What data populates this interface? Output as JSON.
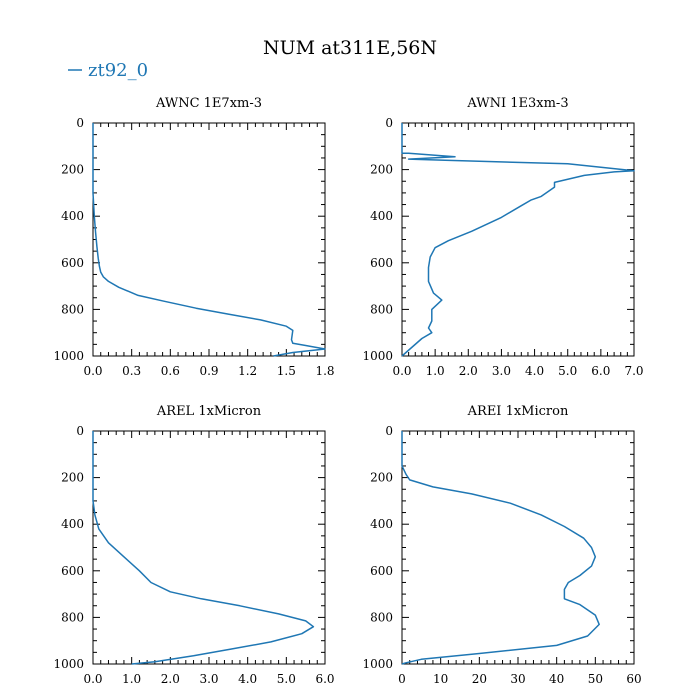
{
  "figure": {
    "title": "NUM at311E,56N",
    "legend_label": "zt92_0",
    "series_color": "#1f77b4"
  },
  "chart_data": [
    {
      "type": "line",
      "title": "AWNC  1E7xm-3",
      "xlabel": "",
      "ylabel": "",
      "xlim": [
        0,
        1.8
      ],
      "ylim": [
        1000,
        0
      ],
      "xticks": [
        "0.0",
        "0.3",
        "0.6",
        "0.9",
        "1.2",
        "1.5",
        "1.8"
      ],
      "yticks": [
        "0",
        "200",
        "400",
        "600",
        "800",
        "1000"
      ],
      "series": [
        {
          "name": "zt92_0",
          "x": [
            0.0,
            0.0,
            0.01,
            0.02,
            0.03,
            0.04,
            0.05,
            0.06,
            0.08,
            0.12,
            0.2,
            0.35,
            0.55,
            0.8,
            1.05,
            1.3,
            1.5,
            1.55,
            1.54,
            1.55,
            1.65,
            1.8,
            1.55,
            1.4
          ],
          "y": [
            0,
            300,
            400,
            470,
            530,
            580,
            615,
            640,
            660,
            680,
            705,
            740,
            765,
            795,
            820,
            845,
            872,
            890,
            930,
            945,
            955,
            970,
            985,
            1000
          ]
        }
      ]
    },
    {
      "type": "line",
      "title": "AWNI  1E3xm-3",
      "xlabel": "",
      "ylabel": "",
      "xlim": [
        0,
        7
      ],
      "ylim": [
        1000,
        0
      ],
      "xticks": [
        "0.0",
        "1.0",
        "2.0",
        "3.0",
        "4.0",
        "5.0",
        "6.0",
        "7.0"
      ],
      "yticks": [
        "0",
        "200",
        "400",
        "600",
        "800",
        "1000"
      ],
      "series": [
        {
          "name": "zt92_0",
          "x": [
            0.0,
            0.0,
            0.2,
            1.6,
            0.2,
            1.3,
            5.0,
            7.0,
            6.4,
            5.5,
            4.6,
            4.6,
            4.2,
            3.9,
            3.6,
            3.0,
            2.1,
            1.4,
            1.0,
            0.85,
            0.8,
            0.8,
            0.95,
            1.2,
            0.9,
            0.9,
            0.8,
            0.9,
            0.6,
            0.0
          ],
          "y": [
            0,
            130,
            130,
            145,
            155,
            160,
            175,
            205,
            210,
            225,
            255,
            275,
            315,
            330,
            355,
            405,
            465,
            505,
            535,
            575,
            620,
            680,
            730,
            760,
            800,
            850,
            880,
            900,
            925,
            1000
          ]
        }
      ]
    },
    {
      "type": "line",
      "title": "AREL  1xMicron",
      "xlabel": "",
      "ylabel": "",
      "xlim": [
        0,
        6
      ],
      "ylim": [
        1000,
        0
      ],
      "xticks": [
        "0.0",
        "1.0",
        "2.0",
        "3.0",
        "4.0",
        "5.0",
        "6.0"
      ],
      "yticks": [
        "0",
        "200",
        "400",
        "600",
        "800",
        "1000"
      ],
      "series": [
        {
          "name": "zt92_0",
          "x": [
            0.0,
            0.0,
            0.05,
            0.15,
            0.4,
            0.8,
            1.2,
            1.5,
            2.0,
            2.8,
            3.8,
            4.8,
            5.5,
            5.7,
            5.4,
            4.6,
            3.6,
            2.6,
            1.6,
            1.0
          ],
          "y": [
            0,
            300,
            360,
            420,
            480,
            540,
            600,
            650,
            690,
            720,
            750,
            785,
            815,
            840,
            870,
            905,
            935,
            965,
            990,
            1000
          ]
        }
      ]
    },
    {
      "type": "line",
      "title": "AREI  1xMicron",
      "xlabel": "",
      "ylabel": "",
      "xlim": [
        0,
        60
      ],
      "ylim": [
        1000,
        0
      ],
      "xticks": [
        "0",
        "10",
        "20",
        "30",
        "40",
        "50",
        "60"
      ],
      "yticks": [
        "0",
        "200",
        "400",
        "600",
        "800",
        "1000"
      ],
      "series": [
        {
          "name": "zt92_0",
          "x": [
            0,
            0,
            1,
            2,
            8,
            18,
            28,
            36,
            42,
            47,
            49,
            50,
            49,
            46,
            43,
            42,
            42,
            46,
            50,
            51,
            48,
            40,
            20,
            5,
            1,
            0
          ],
          "y": [
            0,
            150,
            185,
            210,
            240,
            270,
            310,
            360,
            410,
            460,
            500,
            540,
            580,
            620,
            650,
            680,
            720,
            745,
            790,
            830,
            880,
            920,
            955,
            980,
            995,
            1000
          ]
        }
      ]
    }
  ]
}
